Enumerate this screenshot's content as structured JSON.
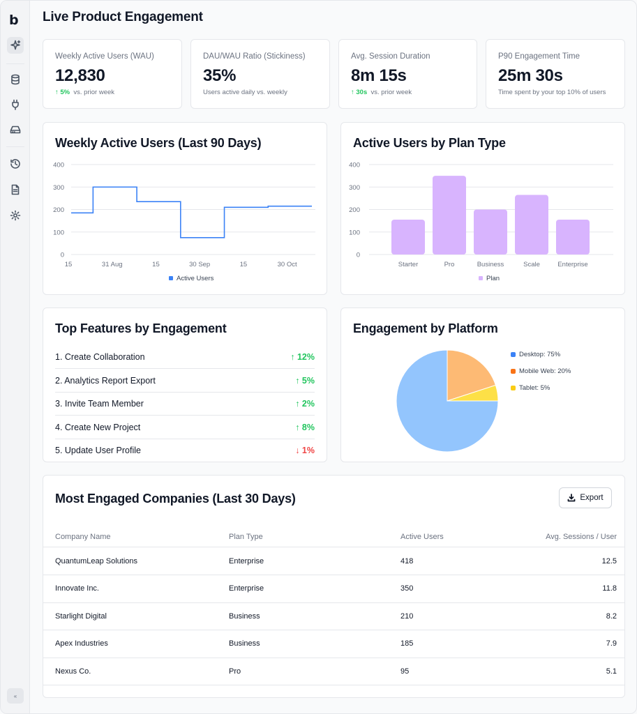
{
  "app": {
    "logo": "b",
    "collapse_glyph": "«"
  },
  "page": {
    "title": "Live Product Engagement"
  },
  "kpis": [
    {
      "label": "Weekly Active Users (WAU)",
      "value": "12,830",
      "change": "5%",
      "change_dir": "up",
      "note": "vs. prior week"
    },
    {
      "label": "DAU/WAU Ratio (Stickiness)",
      "value": "35%",
      "change": "",
      "note": "Users active daily vs. weekly"
    },
    {
      "label": "Avg. Session Duration",
      "value": "8m 15s",
      "change": "30s",
      "change_dir": "up",
      "note": "vs. prior week"
    },
    {
      "label": "P90 Engagement Time",
      "value": "25m 30s",
      "change": "",
      "note": "Time spent by your top 10% of users"
    }
  ],
  "features": {
    "title": "Top Features by Engagement",
    "items": [
      {
        "label": "1. Create Collaboration",
        "change": "12%",
        "dir": "up"
      },
      {
        "label": "2. Analytics Report Export",
        "change": "5%",
        "dir": "up"
      },
      {
        "label": "3. Invite Team Member",
        "change": "2%",
        "dir": "up"
      },
      {
        "label": "4. Create New Project",
        "change": "8%",
        "dir": "up"
      },
      {
        "label": "5. Update User Profile",
        "change": "1%",
        "dir": "down"
      }
    ]
  },
  "companies": {
    "title": "Most Engaged Companies (Last 30 Days)",
    "export_label": "Export",
    "columns": [
      "Company Name",
      "Plan Type",
      "Active Users",
      "Avg. Sessions / User"
    ],
    "rows": [
      [
        "QuantumLeap Solutions",
        "Enterprise",
        "418",
        "12.5"
      ],
      [
        "Innovate Inc.",
        "Enterprise",
        "350",
        "11.8"
      ],
      [
        "Starlight Digital",
        "Business",
        "210",
        "8.2"
      ],
      [
        "Apex Industries",
        "Business",
        "185",
        "7.9"
      ],
      [
        "Nexus Co.",
        "Pro",
        "95",
        "5.1"
      ]
    ]
  },
  "colors": {
    "line": "#3b82f6",
    "bar": "#d8b4fe",
    "up": "#22c55e",
    "down": "#ef4444"
  },
  "chart_data": [
    {
      "type": "line",
      "title": "Weekly Active Users (Last 90 Days)",
      "x": [
        0,
        5,
        15,
        25,
        35,
        45,
        55
      ],
      "values": [
        185,
        300,
        235,
        75,
        210,
        215,
        215
      ],
      "x_range": [
        0,
        55
      ],
      "x_ticks": [
        {
          "at": 0,
          "label": "15"
        },
        {
          "at": 10,
          "label": "31 Aug"
        },
        {
          "at": 20,
          "label": "15"
        },
        {
          "at": 30,
          "label": "30 Sep"
        },
        {
          "at": 40,
          "label": "15"
        },
        {
          "at": 50,
          "label": "30 Oct"
        }
      ],
      "y_ticks": [
        "0",
        "100",
        "200",
        "300",
        "400"
      ],
      "ylim": [
        0,
        400
      ],
      "legend": "Active Users",
      "step": true
    },
    {
      "type": "bar",
      "title": "Active Users by Plan Type",
      "categories": [
        "Starter",
        "Pro",
        "Business",
        "Scale",
        "Enterprise"
      ],
      "values": [
        155,
        350,
        200,
        265,
        155
      ],
      "y_ticks": [
        "0",
        "100",
        "200",
        "300",
        "400"
      ],
      "ylim": [
        0,
        400
      ],
      "legend": "Plan"
    },
    {
      "type": "pie",
      "title": "Engagement by Platform",
      "slices": [
        {
          "name": "Desktop",
          "value": 75,
          "color": "#93c5fd",
          "legend_color": "#3b82f6",
          "label": "Desktop: 75%"
        },
        {
          "name": "Mobile Web",
          "value": 20,
          "color": "#fdba74",
          "legend_color": "#f97316",
          "label": "Mobile Web: 20%"
        },
        {
          "name": "Tablet",
          "value": 5,
          "color": "#fde047",
          "legend_color": "#facc15",
          "label": "Tablet: 5%"
        }
      ]
    }
  ]
}
